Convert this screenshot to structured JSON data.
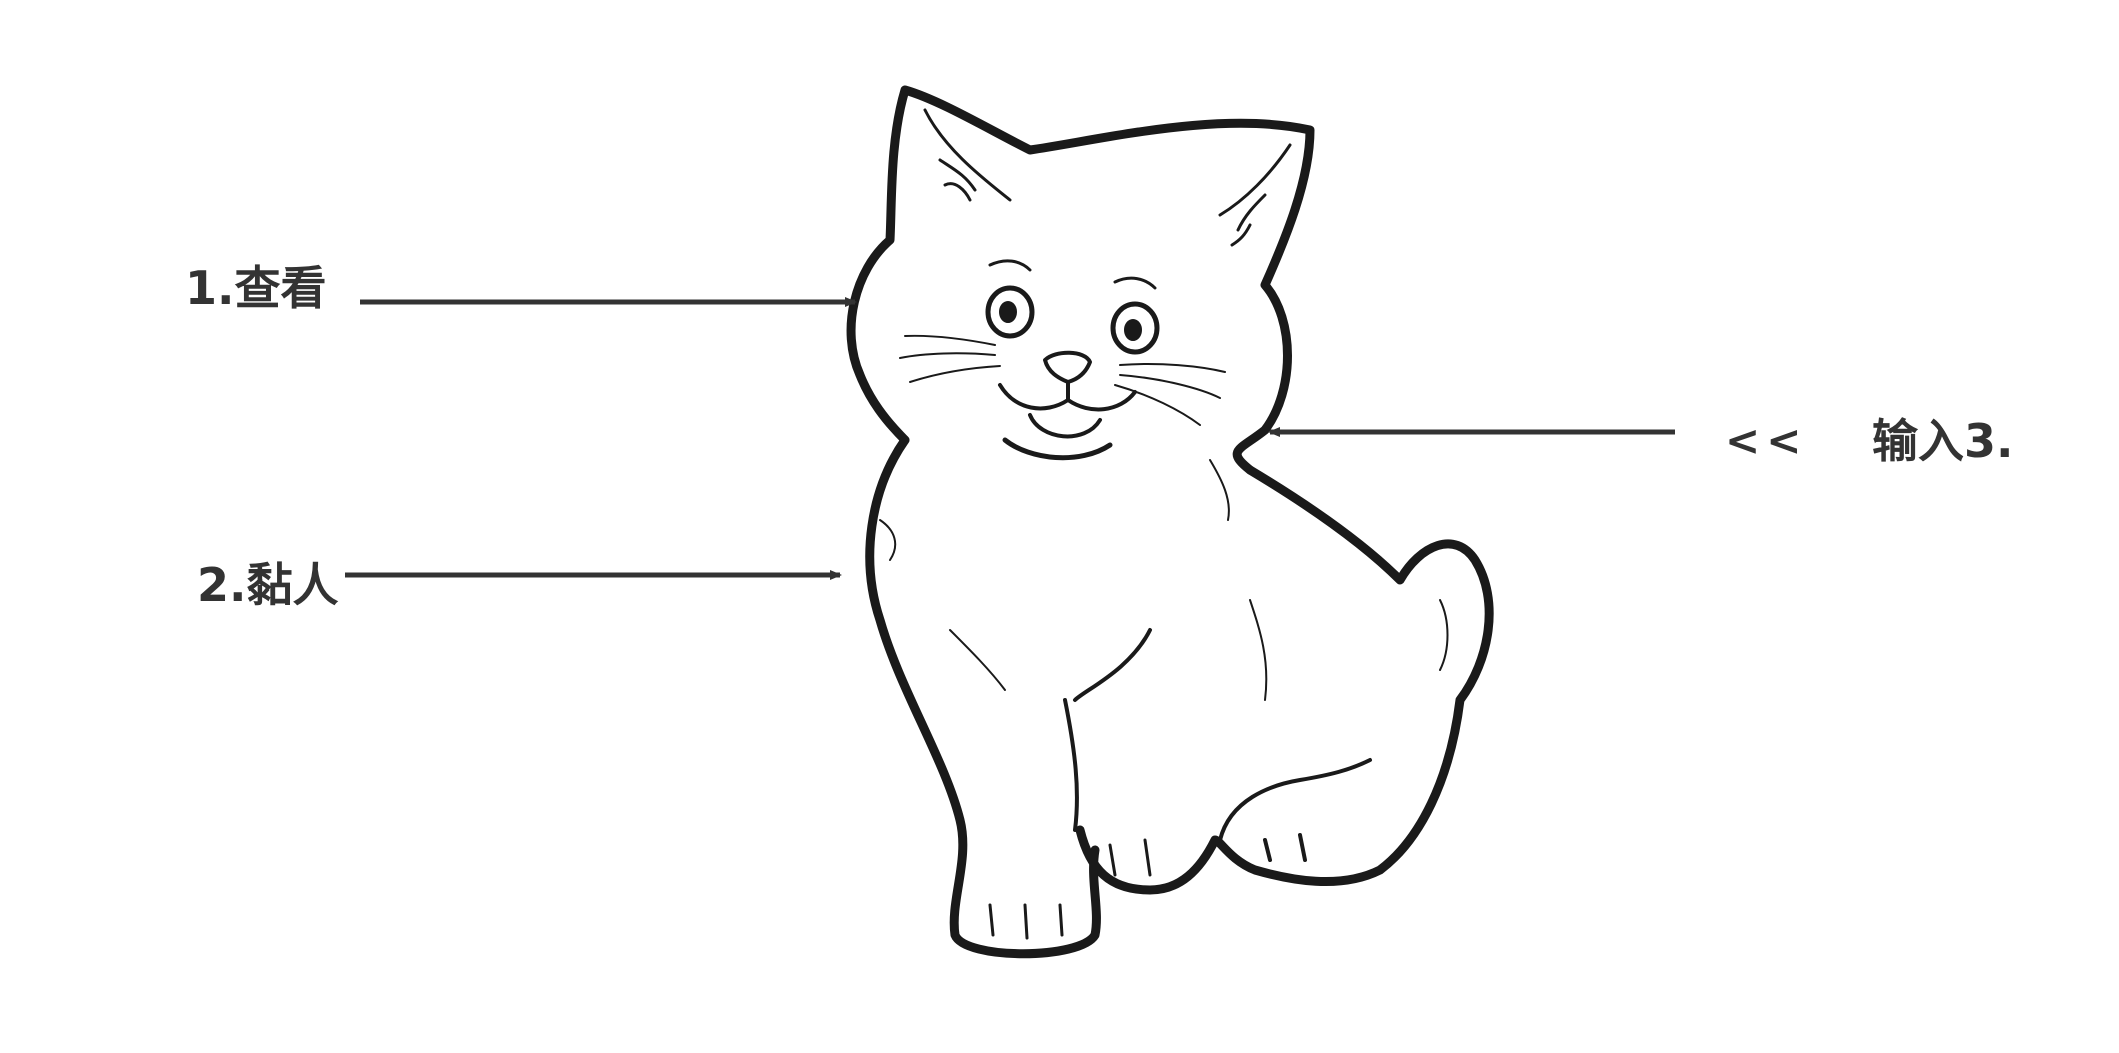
{
  "annotations": [
    {
      "id": "look",
      "text": "1.查看"
    },
    {
      "id": "sticky",
      "text": "2.黏人"
    },
    {
      "id": "input",
      "text": "输入3."
    }
  ],
  "chevrons": "<<",
  "figure": {
    "subject": "kitten-line-drawing",
    "stroke_color": "#1a1a1a",
    "arrow_color": "#333333"
  }
}
